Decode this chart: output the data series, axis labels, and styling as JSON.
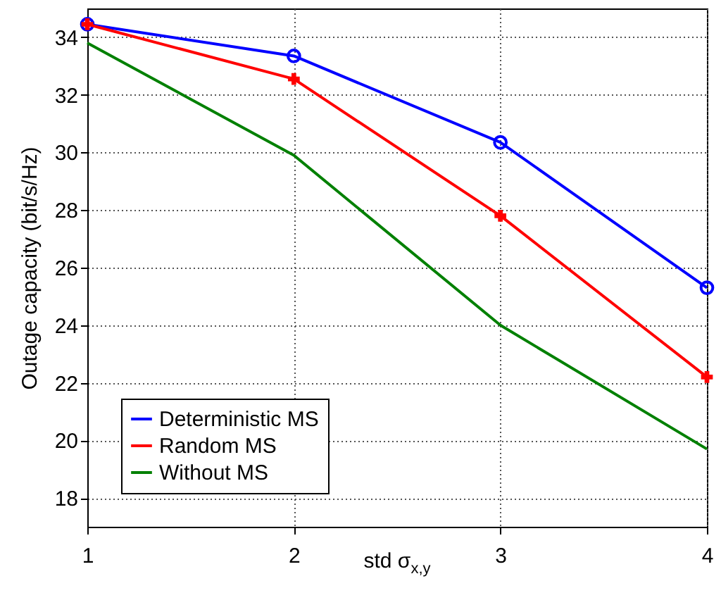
{
  "chart_data": {
    "type": "line",
    "xlabel": "std σ$_{x,y}$",
    "ylabel": "Outage capacity (bit/s/Hz)",
    "x": [
      1,
      2,
      3,
      4
    ],
    "series": [
      {
        "name": "Deterministic MS",
        "color": "#0000ff",
        "marker": "circle",
        "values": [
          34.45,
          33.35,
          30.35,
          25.3
        ]
      },
      {
        "name": "Random MS",
        "color": "#ff0000",
        "marker": "cross",
        "values": [
          34.45,
          32.55,
          27.8,
          22.2
        ]
      },
      {
        "name": "Without MS",
        "color": "#008000",
        "marker": "none",
        "values": [
          33.8,
          29.9,
          24.0,
          19.7
        ]
      }
    ],
    "xlim": [
      1,
      4
    ],
    "xticks": [
      1,
      2,
      3,
      4
    ],
    "ylim": [
      17,
      35
    ],
    "yticks": [
      18,
      20,
      22,
      24,
      26,
      28,
      30,
      32,
      34
    ],
    "grid": true,
    "legend": "bottom left",
    "line_style": "solid"
  }
}
